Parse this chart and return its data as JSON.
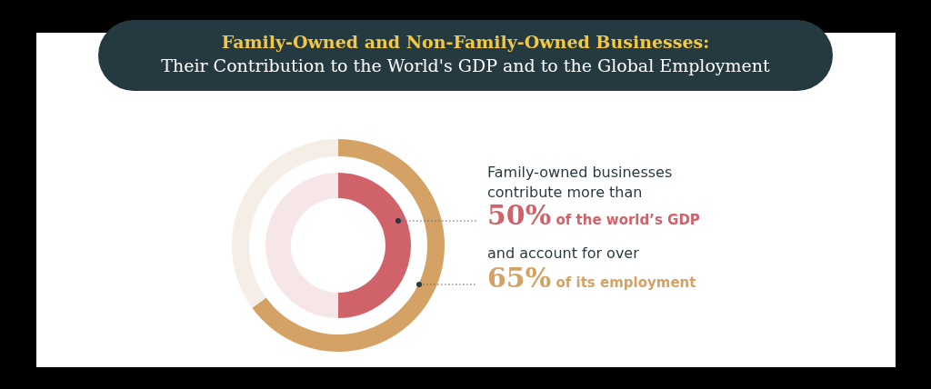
{
  "chart_data": {
    "type": "donut",
    "title": "Family-Owned and Non-Family-Owned Businesses:",
    "subtitle": "Their Contribution to the World's GDP and to the Global Employment",
    "categories": [
      null,
      null
    ],
    "series": [
      {
        "colors": [
          "#d4a264",
          "#f4eee6"
        ],
        "values": [
          65,
          35
        ],
        "value_labels": [
          "65%",
          null
        ]
      },
      {
        "colors": [
          "#d0636a",
          "#f7e6e8"
        ],
        "values": [
          50,
          50
        ],
        "value_labels": [
          "50%",
          null
        ]
      }
    ],
    "annotations": [
      "Family-owned businesses contribute more than",
      "of the world’s GDP",
      "and account for over",
      "of its employment"
    ]
  }
}
